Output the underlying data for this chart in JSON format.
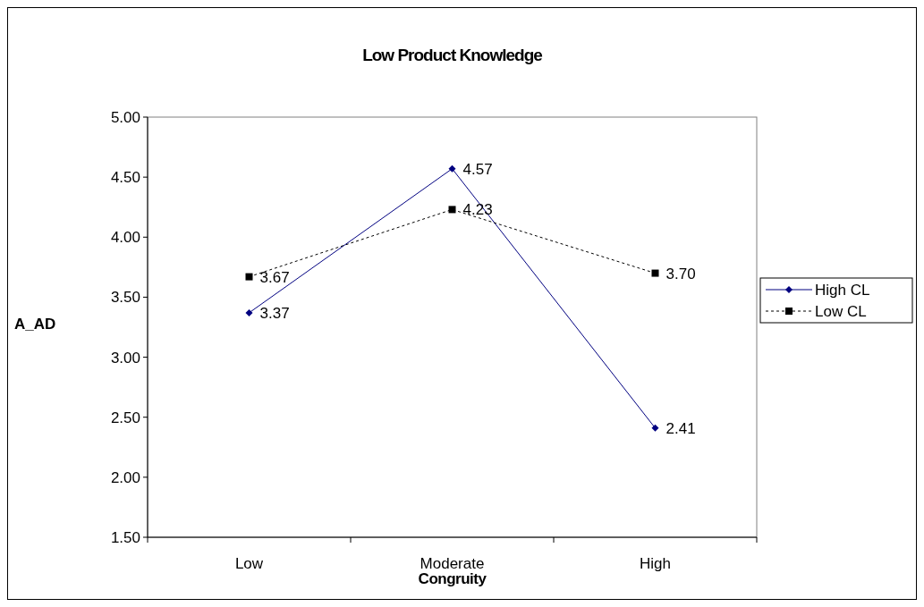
{
  "chart_data": {
    "type": "line",
    "title": "Low Product Knowledge",
    "xlabel": "Congruity",
    "ylabel": "A_AD",
    "categories": [
      "Low",
      "Moderate",
      "High"
    ],
    "series": [
      {
        "name": "High CL",
        "color": "#000080",
        "values": [
          3.37,
          4.57,
          2.41
        ],
        "value_labels": [
          "3.37",
          "4.57",
          "2.41"
        ],
        "marker": "diamond",
        "line_style": "solid"
      },
      {
        "name": "Low CL",
        "color": "#000000",
        "values": [
          3.67,
          4.23,
          3.7
        ],
        "value_labels": [
          "3.67",
          "4.23",
          "3.70"
        ],
        "marker": "square",
        "line_style": "dotted"
      }
    ],
    "ylim": [
      1.5,
      5.0
    ],
    "yticks": [
      {
        "value": 1.5,
        "label": "1.50"
      },
      {
        "value": 2.0,
        "label": "2.00"
      },
      {
        "value": 2.5,
        "label": "2.50"
      },
      {
        "value": 3.0,
        "label": "3.00"
      },
      {
        "value": 3.5,
        "label": "3.50"
      },
      {
        "value": 4.0,
        "label": "4.00"
      },
      {
        "value": 4.5,
        "label": "4.50"
      },
      {
        "value": 5.0,
        "label": "5.00"
      }
    ],
    "grid": false,
    "legend": "right"
  }
}
